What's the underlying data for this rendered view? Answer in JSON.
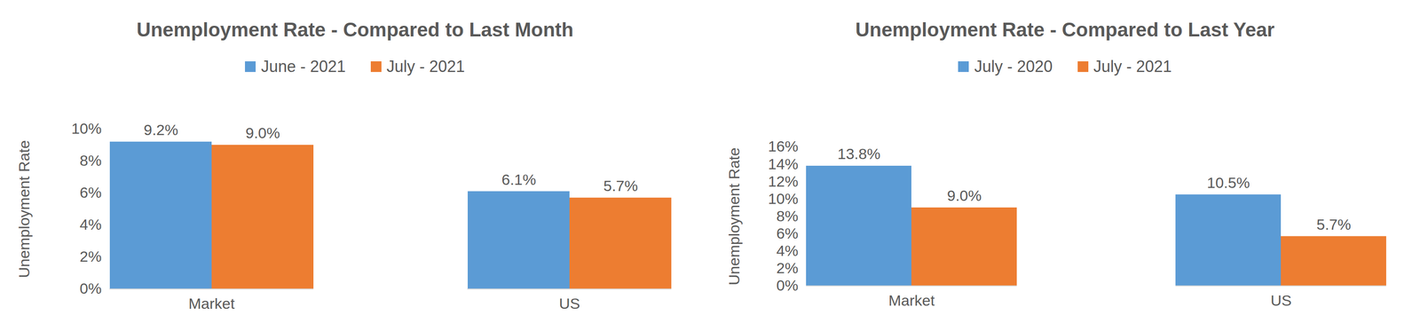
{
  "chart_data": [
    {
      "type": "bar",
      "title": "Unemployment Rate - Compared to Last Month",
      "y_label": "Unemployment Rate",
      "categories": [
        "Market",
        "US"
      ],
      "series": [
        {
          "name": "June - 2021",
          "color": "#5b9bd5",
          "values": [
            9.2,
            6.1
          ],
          "value_labels": [
            "9.2%",
            "6.1%"
          ]
        },
        {
          "name": "July - 2021",
          "color": "#ed7d31",
          "values": [
            9.0,
            5.7
          ],
          "value_labels": [
            "9.0%",
            "5.7%"
          ]
        }
      ],
      "ylim": [
        0,
        10
      ],
      "yticks": [
        {
          "value": 0,
          "label": "0%"
        },
        {
          "value": 2,
          "label": "2%"
        },
        {
          "value": 4,
          "label": "4%"
        },
        {
          "value": 6,
          "label": "6%"
        },
        {
          "value": 8,
          "label": "8%"
        },
        {
          "value": 10,
          "label": "10%"
        }
      ],
      "grid": false,
      "legend": "top",
      "data_labels": true
    },
    {
      "type": "bar",
      "title": "Unemployment Rate - Compared to Last Year",
      "y_label": "Unemployment Rate",
      "categories": [
        "Market",
        "US"
      ],
      "series": [
        {
          "name": "July - 2020",
          "color": "#5b9bd5",
          "values": [
            13.8,
            10.5
          ],
          "value_labels": [
            "13.8%",
            "10.5%"
          ]
        },
        {
          "name": "July - 2021",
          "color": "#ed7d31",
          "values": [
            9.0,
            5.7
          ],
          "value_labels": [
            "9.0%",
            "5.7%"
          ]
        }
      ],
      "ylim": [
        0,
        16
      ],
      "yticks": [
        {
          "value": 0,
          "label": "0%"
        },
        {
          "value": 2,
          "label": "2%"
        },
        {
          "value": 4,
          "label": "4%"
        },
        {
          "value": 6,
          "label": "6%"
        },
        {
          "value": 8,
          "label": "8%"
        },
        {
          "value": 10,
          "label": "10%"
        },
        {
          "value": 12,
          "label": "12%"
        },
        {
          "value": 14,
          "label": "14%"
        },
        {
          "value": 16,
          "label": "16%"
        }
      ],
      "grid": false,
      "legend": "top",
      "data_labels": true
    }
  ]
}
